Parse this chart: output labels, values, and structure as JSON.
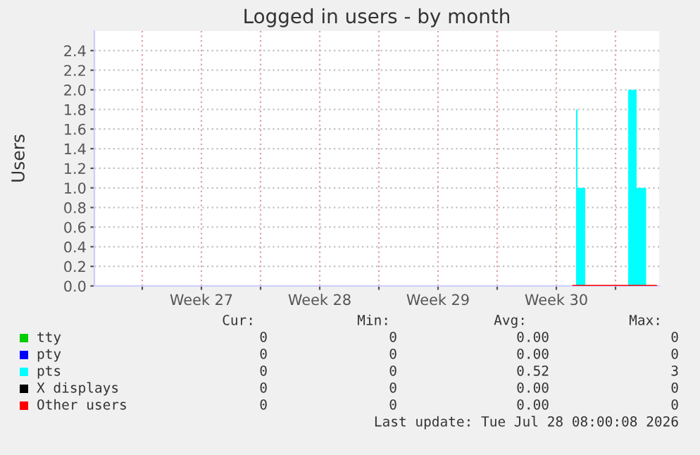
{
  "chart_data": {
    "type": "area",
    "title": "Logged in users - by month",
    "ylabel": "Users",
    "xlim": [
      "2026-06-26T04:00",
      "2026-07-29T14:00"
    ],
    "ylim": [
      0,
      2.6
    ],
    "xticks": [
      {
        "value": "2026-06-29",
        "label": null
      },
      {
        "value": "2026-07-02T12:00",
        "label": "Week 27"
      },
      {
        "value": "2026-07-06",
        "label": null
      },
      {
        "value": "2026-07-09T12:00",
        "label": "Week 28"
      },
      {
        "value": "2026-07-13",
        "label": null
      },
      {
        "value": "2026-07-16T12:00",
        "label": "Week 29"
      },
      {
        "value": "2026-07-20",
        "label": null
      },
      {
        "value": "2026-07-23T12:00",
        "label": "Week 30"
      },
      {
        "value": "2026-07-27",
        "label": null
      }
    ],
    "yticks": [
      {
        "value": 0,
        "label": "0.0"
      },
      0.2,
      0.4,
      0.6,
      0.8,
      {
        "value": 1,
        "label": "1.0"
      },
      1.2,
      1.4,
      1.6,
      1.8,
      {
        "value": 2,
        "label": "2.0"
      },
      2.2,
      2.4
    ],
    "grid": true,
    "legend": "bottom",
    "series": [
      {
        "name": "tty",
        "color": "#00cc00",
        "type": "line"
      },
      {
        "name": "pty",
        "color": "#0000ff",
        "type": "line"
      },
      {
        "name": "pts",
        "color": "#00ffff",
        "x": [
          "2026-07-24T12:00",
          "2026-07-24T16:00",
          "2026-07-24T16:00",
          "2026-07-24T18:00",
          "2026-07-24T18:00",
          "2026-07-25T05:00",
          "2026-07-25T05:00",
          "2026-07-27T18:00",
          "2026-07-27T18:00",
          "2026-07-28T06:00",
          "2026-07-28T06:00",
          "2026-07-28T19:30",
          "2026-07-28T19:30",
          "2026-07-29T09:30"
        ],
        "values": [
          0,
          0,
          1.8,
          1.8,
          1.0,
          1.0,
          0,
          0,
          2.0,
          2.0,
          1.0,
          1.0,
          0,
          0
        ]
      },
      {
        "name": "X displays",
        "color": "#000000",
        "type": "line"
      },
      {
        "name": "Other users",
        "color": "#ff0000",
        "type": "line",
        "x": [
          "2026-07-24T12:00",
          "2026-07-29T09:30"
        ],
        "values": [
          0,
          0
        ]
      }
    ],
    "annotations": [
      "Cur:",
      "Min:",
      "Avg:",
      "Max:",
      "0",
      "0",
      "0.00",
      "0",
      "0",
      "0",
      "0.00",
      "0",
      "0",
      "0",
      "0.52",
      "3",
      "0",
      "0",
      "0.00",
      "0",
      "0",
      "0",
      "0.00",
      "0",
      "Last update: Tue Jul 28 08:00:08 2026"
    ]
  }
}
